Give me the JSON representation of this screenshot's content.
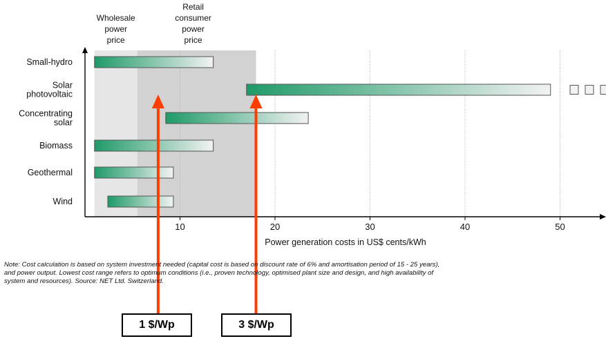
{
  "chart_data": {
    "type": "bar",
    "subtype": "floating-range-horizontal",
    "categories": [
      "Small-hydro",
      "Solar\nphotovoltaic",
      "Concentrating\nsolar",
      "Biomass",
      "Geothermal",
      "Wind"
    ],
    "ranges": [
      {
        "category": "Small-hydro",
        "low": 1.0,
        "high": 13.5
      },
      {
        "category": "Solar photovoltaic",
        "low": 17.0,
        "high": 49.0,
        "continues_beyond_axis": true
      },
      {
        "category": "Concentrating solar",
        "low": 8.5,
        "high": 23.5
      },
      {
        "category": "Biomass",
        "low": 1.0,
        "high": 13.5
      },
      {
        "category": "Geothermal",
        "low": 1.0,
        "high": 9.3
      },
      {
        "category": "Wind",
        "low": 2.4,
        "high": 9.3
      }
    ],
    "xlabel": "Power generation costs in US$ cents/kWh",
    "xticks": [
      10,
      20,
      30,
      40,
      50
    ],
    "xlim": [
      0,
      55
    ],
    "grid": "vertical",
    "shaded_bands": [
      {
        "label": "Wholesale\npower\nprice",
        "from": 1.0,
        "to": 5.5,
        "color": "#e6e6e6"
      },
      {
        "label": "Retail\nconsumer\npower\nprice",
        "from": 5.5,
        "to": 18.0,
        "color": "#d2d2d2"
      }
    ],
    "annotations": [
      {
        "label": "1 $/Wp",
        "x": 7.7
      },
      {
        "label": "3 $/Wp",
        "x": 18.0
      }
    ],
    "note_lines": [
      "Note: Cost calculation is based on system investment needed (capital cost is based on discount rate of 6% and amortisation period of 15 - 25 years),",
      "and power output. Lowest cost range refers to optimum conditions (i.e., proven technology, optimised plant size and design, and high availability of",
      "system and resources). Source: NET Ltd. Switzerland."
    ]
  },
  "colors": {
    "bar_start": "#1f9a68",
    "bar_end": "#f2f2f2",
    "arrow": "#ff3d00",
    "wholesale_band": "#e6e6e6",
    "retail_band": "#d2d2d2"
  }
}
